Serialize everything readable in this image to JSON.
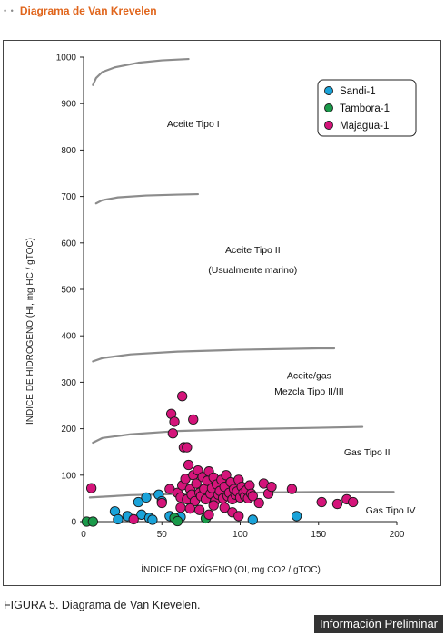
{
  "header": {
    "dots": "• •",
    "title": "Diagrama de Van Krevelen"
  },
  "caption": "FIGURA 5. Diagrama de Van Krevelen.",
  "badge": "Información Preliminar",
  "chart_data": {
    "type": "scatter",
    "xlabel": "ÍNDICE DE OXÍGENO (OI, mg CO2 / gTOC)",
    "ylabel": "ÍNDICE DE HIDRÓGENO (HI, mg HC / gTOC)",
    "xlim": [
      0,
      200
    ],
    "ylim": [
      0,
      1000
    ],
    "xticks": [
      0,
      50,
      100,
      150,
      200
    ],
    "yticks": [
      0,
      100,
      200,
      300,
      400,
      500,
      600,
      700,
      800,
      900,
      1000
    ],
    "grid": false,
    "legend_position": "top-right",
    "curve_color": "#8c8c8c",
    "curves": [
      {
        "points": [
          [
            6,
            940
          ],
          [
            8,
            955
          ],
          [
            12,
            968
          ],
          [
            20,
            978
          ],
          [
            35,
            988
          ],
          [
            50,
            993
          ],
          [
            67,
            996
          ]
        ]
      },
      {
        "points": [
          [
            8,
            685
          ],
          [
            12,
            692
          ],
          [
            22,
            698
          ],
          [
            40,
            702
          ],
          [
            60,
            704
          ],
          [
            73,
            705
          ]
        ]
      },
      {
        "points": [
          [
            6,
            345
          ],
          [
            12,
            352
          ],
          [
            30,
            360
          ],
          [
            60,
            366
          ],
          [
            100,
            370
          ],
          [
            150,
            373
          ],
          [
            160,
            373
          ]
        ]
      },
      {
        "points": [
          [
            6,
            170
          ],
          [
            12,
            180
          ],
          [
            30,
            188
          ],
          [
            60,
            195
          ],
          [
            100,
            199
          ],
          [
            150,
            202
          ],
          [
            178,
            204
          ]
        ]
      },
      {
        "points": [
          [
            4,
            52
          ],
          [
            30,
            57
          ],
          [
            70,
            60
          ],
          [
            120,
            63
          ],
          [
            160,
            64
          ],
          [
            198,
            64
          ]
        ]
      }
    ],
    "annotations": [
      {
        "text": "Aceite Tipo I",
        "x": 70,
        "y": 850
      },
      {
        "text": "Aceite Tipo II",
        "x": 108,
        "y": 578
      },
      {
        "text": "(Usualmente marino)",
        "x": 108,
        "y": 535
      },
      {
        "text": "Aceite/gas",
        "x": 144,
        "y": 308
      },
      {
        "text": "Mezcla Tipo II/III",
        "x": 144,
        "y": 273
      },
      {
        "text": "Gas Tipo II",
        "x": 181,
        "y": 143
      },
      {
        "text": "Gas Tipo IV",
        "x": 196,
        "y": 18
      }
    ],
    "series": [
      {
        "name": "Sandi-1",
        "color": "#1aa3d9",
        "points": [
          [
            20,
            22
          ],
          [
            22,
            5
          ],
          [
            28,
            12
          ],
          [
            35,
            42
          ],
          [
            37,
            15
          ],
          [
            40,
            52
          ],
          [
            42,
            8
          ],
          [
            44,
            4
          ],
          [
            48,
            58
          ],
          [
            50,
            44
          ],
          [
            55,
            12
          ],
          [
            60,
            2
          ],
          [
            62,
            10
          ],
          [
            108,
            4
          ],
          [
            136,
            12
          ]
        ]
      },
      {
        "name": "Tambora-1",
        "color": "#1a9a4a",
        "points": [
          [
            2,
            0
          ],
          [
            6,
            0
          ],
          [
            58,
            8
          ],
          [
            60,
            1
          ],
          [
            78,
            7
          ]
        ]
      },
      {
        "name": "Majagua-1",
        "color": "#d4147a",
        "points": [
          [
            5,
            72
          ],
          [
            32,
            5
          ],
          [
            50,
            40
          ],
          [
            55,
            70
          ],
          [
            56,
            232
          ],
          [
            57,
            190
          ],
          [
            58,
            215
          ],
          [
            63,
            270
          ],
          [
            64,
            160
          ],
          [
            66,
            160
          ],
          [
            70,
            220
          ],
          [
            60,
            62
          ],
          [
            62,
            52
          ],
          [
            63,
            78
          ],
          [
            65,
            92
          ],
          [
            66,
            48
          ],
          [
            67,
            122
          ],
          [
            68,
            70
          ],
          [
            69,
            58
          ],
          [
            70,
            100
          ],
          [
            71,
            44
          ],
          [
            72,
            82
          ],
          [
            73,
            110
          ],
          [
            74,
            62
          ],
          [
            75,
            55
          ],
          [
            76,
            96
          ],
          [
            77,
            70
          ],
          [
            78,
            48
          ],
          [
            79,
            88
          ],
          [
            80,
            108
          ],
          [
            81,
            60
          ],
          [
            82,
            72
          ],
          [
            83,
            95
          ],
          [
            84,
            45
          ],
          [
            85,
            80
          ],
          [
            86,
            58
          ],
          [
            87,
            66
          ],
          [
            88,
            90
          ],
          [
            89,
            50
          ],
          [
            90,
            75
          ],
          [
            91,
            100
          ],
          [
            92,
            55
          ],
          [
            93,
            62
          ],
          [
            94,
            85
          ],
          [
            95,
            48
          ],
          [
            96,
            70
          ],
          [
            97,
            58
          ],
          [
            98,
            65
          ],
          [
            99,
            90
          ],
          [
            100,
            52
          ],
          [
            101,
            75
          ],
          [
            102,
            62
          ],
          [
            103,
            55
          ],
          [
            104,
            68
          ],
          [
            105,
            50
          ],
          [
            106,
            78
          ],
          [
            107,
            60
          ],
          [
            108,
            55
          ],
          [
            62,
            30
          ],
          [
            68,
            28
          ],
          [
            74,
            25
          ],
          [
            80,
            15
          ],
          [
            83,
            35
          ],
          [
            90,
            30
          ],
          [
            95,
            20
          ],
          [
            99,
            12
          ],
          [
            112,
            40
          ],
          [
            115,
            82
          ],
          [
            118,
            60
          ],
          [
            120,
            75
          ],
          [
            133,
            70
          ],
          [
            152,
            42
          ],
          [
            162,
            38
          ],
          [
            168,
            48
          ],
          [
            172,
            42
          ]
        ]
      }
    ]
  }
}
